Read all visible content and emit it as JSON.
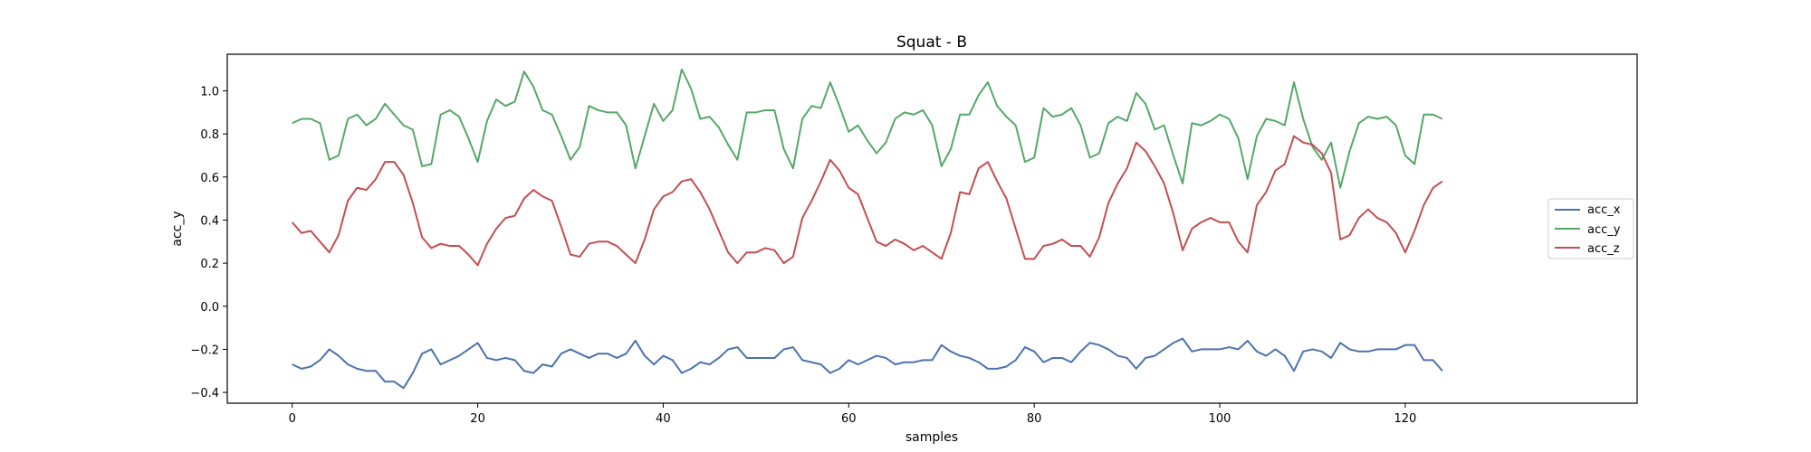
{
  "chart_data": {
    "type": "line",
    "title": "Squat - B",
    "xlabel": "samples",
    "ylabel": "acc_y",
    "xlim": [
      -7,
      145
    ],
    "ylim": [
      -0.45,
      1.17
    ],
    "xticks": [
      0,
      20,
      40,
      60,
      80,
      100,
      120
    ],
    "yticks": [
      -0.4,
      -0.2,
      0.0,
      0.2,
      0.4,
      0.6,
      0.8,
      1.0
    ],
    "ytick_labels": [
      "−0.4",
      "−0.2",
      "0.0",
      "0.2",
      "0.4",
      "0.6",
      "0.8",
      "1.0"
    ],
    "grid": false,
    "legend_position": "center-right",
    "x_start": 0,
    "series": [
      {
        "name": "acc_x",
        "color": "#4c72b0",
        "values": [
          -0.27,
          -0.29,
          -0.28,
          -0.25,
          -0.2,
          -0.23,
          -0.27,
          -0.29,
          -0.3,
          -0.3,
          -0.35,
          -0.35,
          -0.38,
          -0.31,
          -0.22,
          -0.2,
          -0.27,
          -0.25,
          -0.23,
          -0.2,
          -0.17,
          -0.24,
          -0.25,
          -0.24,
          -0.25,
          -0.3,
          -0.31,
          -0.27,
          -0.28,
          -0.22,
          -0.2,
          -0.22,
          -0.24,
          -0.22,
          -0.22,
          -0.24,
          -0.22,
          -0.16,
          -0.23,
          -0.27,
          -0.23,
          -0.25,
          -0.31,
          -0.29,
          -0.26,
          -0.27,
          -0.24,
          -0.2,
          -0.19,
          -0.24,
          -0.24,
          -0.24,
          -0.24,
          -0.2,
          -0.19,
          -0.25,
          -0.26,
          -0.27,
          -0.31,
          -0.29,
          -0.25,
          -0.27,
          -0.25,
          -0.23,
          -0.24,
          -0.27,
          -0.26,
          -0.26,
          -0.25,
          -0.25,
          -0.18,
          -0.21,
          -0.23,
          -0.24,
          -0.26,
          -0.29,
          -0.29,
          -0.28,
          -0.25,
          -0.19,
          -0.21,
          -0.26,
          -0.24,
          -0.24,
          -0.26,
          -0.21,
          -0.17,
          -0.18,
          -0.2,
          -0.23,
          -0.24,
          -0.29,
          -0.24,
          -0.23,
          -0.2,
          -0.17,
          -0.15,
          -0.21,
          -0.2,
          -0.2,
          -0.2,
          -0.19,
          -0.2,
          -0.16,
          -0.21,
          -0.23,
          -0.2,
          -0.23,
          -0.3,
          -0.21,
          -0.2,
          -0.21,
          -0.24,
          -0.17,
          -0.2,
          -0.21,
          -0.21,
          -0.2,
          -0.2,
          -0.2,
          -0.18,
          -0.18,
          -0.25,
          -0.25,
          -0.3
        ]
      },
      {
        "name": "acc_y",
        "color": "#55a868",
        "values": [
          0.85,
          0.87,
          0.87,
          0.85,
          0.68,
          0.7,
          0.87,
          0.89,
          0.84,
          0.87,
          0.94,
          0.89,
          0.84,
          0.82,
          0.65,
          0.66,
          0.89,
          0.91,
          0.88,
          0.78,
          0.67,
          0.86,
          0.96,
          0.93,
          0.95,
          1.09,
          1.02,
          0.91,
          0.89,
          0.79,
          0.68,
          0.74,
          0.93,
          0.91,
          0.9,
          0.9,
          0.84,
          0.64,
          0.79,
          0.94,
          0.86,
          0.91,
          1.1,
          1.01,
          0.87,
          0.88,
          0.83,
          0.75,
          0.68,
          0.9,
          0.9,
          0.91,
          0.91,
          0.73,
          0.64,
          0.87,
          0.93,
          0.92,
          1.04,
          0.93,
          0.81,
          0.84,
          0.77,
          0.71,
          0.76,
          0.87,
          0.9,
          0.89,
          0.91,
          0.84,
          0.65,
          0.73,
          0.89,
          0.89,
          0.98,
          1.04,
          0.93,
          0.88,
          0.84,
          0.67,
          0.69,
          0.92,
          0.88,
          0.89,
          0.92,
          0.84,
          0.69,
          0.71,
          0.85,
          0.88,
          0.86,
          0.99,
          0.94,
          0.82,
          0.84,
          0.7,
          0.57,
          0.85,
          0.84,
          0.86,
          0.89,
          0.87,
          0.78,
          0.59,
          0.79,
          0.87,
          0.86,
          0.84,
          1.04,
          0.87,
          0.74,
          0.68,
          0.76,
          0.55,
          0.72,
          0.85,
          0.88,
          0.87,
          0.88,
          0.84,
          0.7,
          0.66,
          0.89,
          0.89,
          0.87
        ]
      },
      {
        "name": "acc_z",
        "color": "#c44e52",
        "values": [
          0.39,
          0.34,
          0.35,
          0.3,
          0.25,
          0.33,
          0.49,
          0.55,
          0.54,
          0.59,
          0.67,
          0.67,
          0.61,
          0.48,
          0.32,
          0.27,
          0.29,
          0.28,
          0.28,
          0.24,
          0.19,
          0.29,
          0.36,
          0.41,
          0.42,
          0.5,
          0.54,
          0.51,
          0.49,
          0.37,
          0.24,
          0.23,
          0.29,
          0.3,
          0.3,
          0.28,
          0.24,
          0.2,
          0.31,
          0.45,
          0.51,
          0.53,
          0.58,
          0.59,
          0.53,
          0.45,
          0.35,
          0.25,
          0.2,
          0.25,
          0.25,
          0.27,
          0.26,
          0.2,
          0.23,
          0.41,
          0.49,
          0.58,
          0.68,
          0.63,
          0.55,
          0.52,
          0.41,
          0.3,
          0.28,
          0.31,
          0.29,
          0.26,
          0.28,
          0.25,
          0.22,
          0.34,
          0.53,
          0.52,
          0.64,
          0.67,
          0.58,
          0.5,
          0.36,
          0.22,
          0.22,
          0.28,
          0.29,
          0.31,
          0.28,
          0.28,
          0.23,
          0.32,
          0.48,
          0.57,
          0.64,
          0.76,
          0.72,
          0.65,
          0.57,
          0.43,
          0.26,
          0.36,
          0.39,
          0.41,
          0.39,
          0.39,
          0.3,
          0.25,
          0.47,
          0.53,
          0.63,
          0.66,
          0.79,
          0.76,
          0.75,
          0.71,
          0.62,
          0.31,
          0.33,
          0.41,
          0.45,
          0.41,
          0.39,
          0.34,
          0.25,
          0.35,
          0.47,
          0.55,
          0.58
        ]
      }
    ]
  }
}
